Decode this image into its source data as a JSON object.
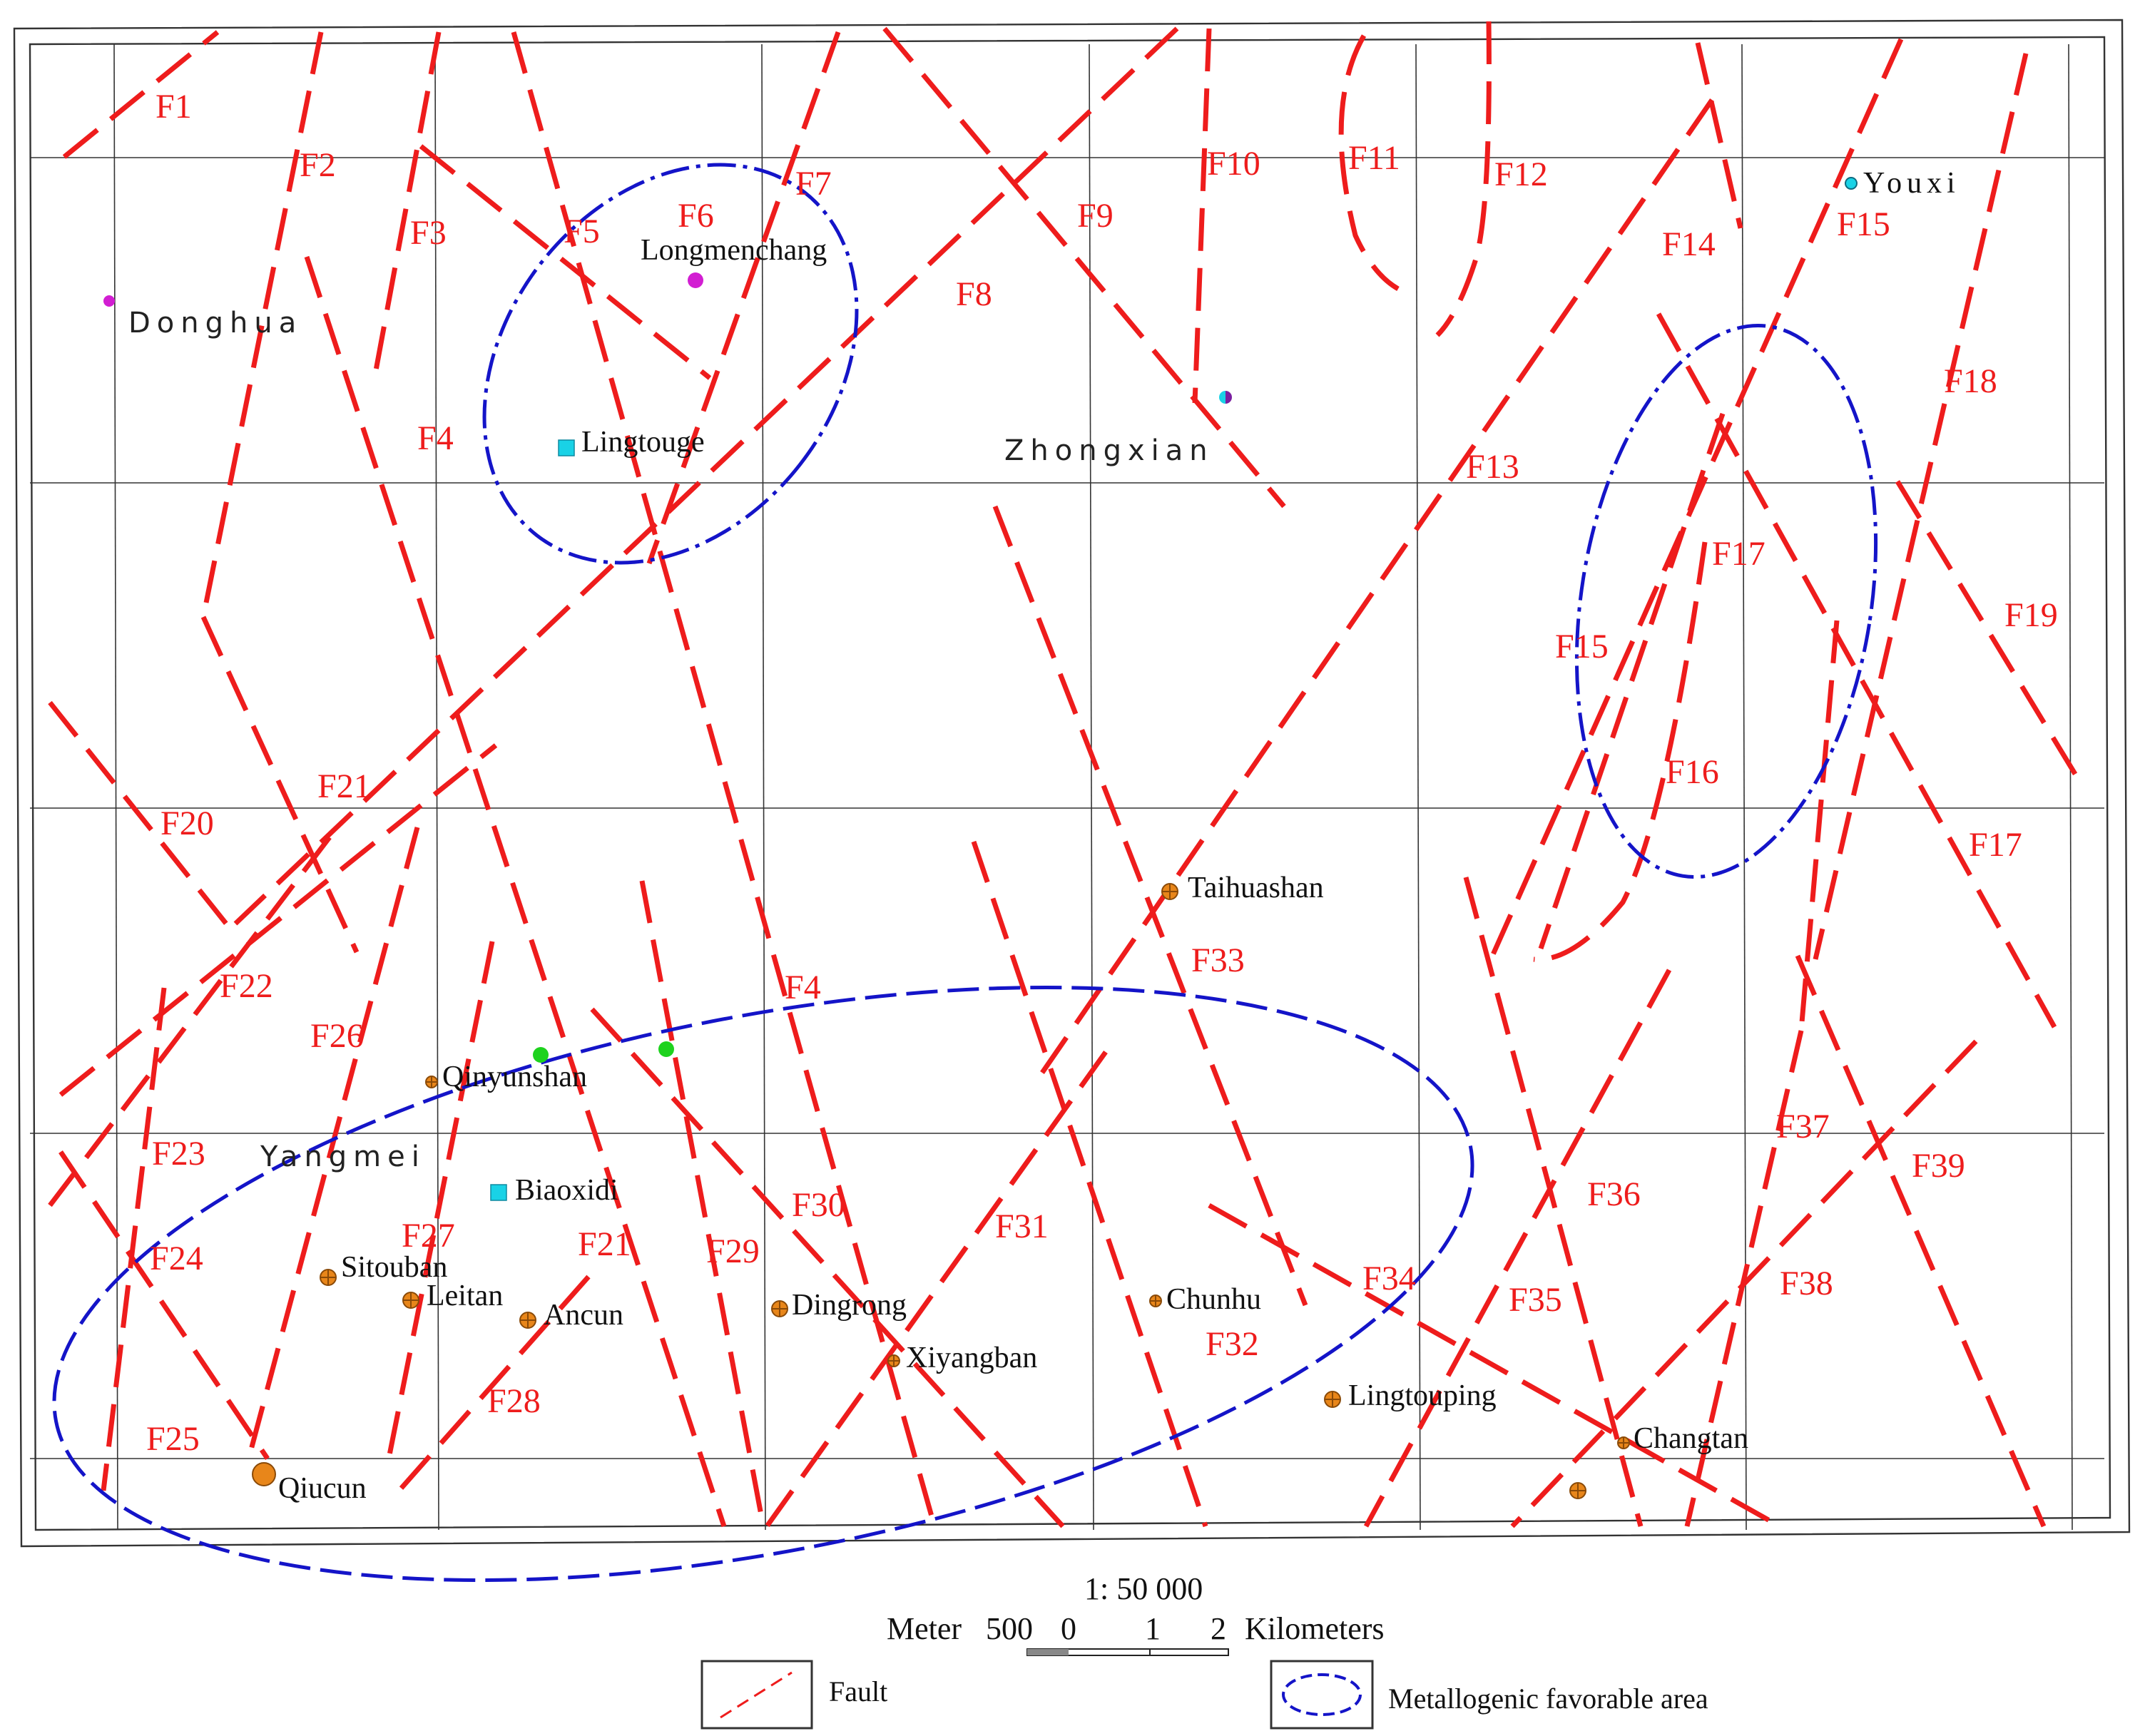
{
  "map": {
    "colors": {
      "fault": "#ee1c1c",
      "favorable_area": "#1414c8",
      "grid": "#333333",
      "deposit_orange": "#e8861a",
      "deposit_magenta": "#d21ed2",
      "deposit_cyan": "#19d2e6",
      "deposit_green": "#1ed21e"
    },
    "fault_labels": {
      "F1": "F1",
      "F2": "F2",
      "F3": "F3",
      "F4a": "F4",
      "F4b": "F4",
      "F5": "F5",
      "F6": "F6",
      "F7": "F7",
      "F8": "F8",
      "F9": "F9",
      "F10": "F10",
      "F11": "F11",
      "F12": "F12",
      "F13": "F13",
      "F14": "F14",
      "F15a": "F15",
      "F15b": "F15",
      "F16": "F16",
      "F17a": "F17",
      "F17b": "F17",
      "F18": "F18",
      "F19": "F19",
      "F20": "F20",
      "F21a": "F21",
      "F21b": "F21",
      "F22": "F22",
      "F23": "F23",
      "F24": "F24",
      "F25": "F25",
      "F26": "F26",
      "F27": "F27",
      "F28": "F28",
      "F29": "F29",
      "F30": "F30",
      "F31": "F31",
      "F32": "F32",
      "F33": "F33",
      "F34": "F34",
      "F35": "F35",
      "F36": "F36",
      "F37": "F37",
      "F38": "F38",
      "F39": "F39"
    },
    "places": {
      "donghua": "Donghua",
      "zhongxian": "Zhongxian",
      "yangmei": "Yangmei",
      "longmenchang": "Longmenchang",
      "lingtouge": "Lingtouge",
      "youxi": "Youxi",
      "taihuashan": "Taihuashan",
      "qinyunshan": "Qinyunshan",
      "biaoxidi": "Biaoxidi",
      "sitouban": "Sitouban",
      "leitan": "Leitan",
      "ancun": "Ancun",
      "dingrong": "Dingrong",
      "xiyangban": "Xiyangban",
      "chunhu": "Chunhu",
      "lingtouping": "Lingtouping",
      "changtan": "Changtan",
      "qiucun": "Qiucun"
    },
    "scale": {
      "ratio": "1: 50 000",
      "unit_left": "Meter",
      "ticks": [
        "500",
        "0",
        "1",
        "2"
      ],
      "unit_right": "Kilometers"
    },
    "legend": {
      "fault": "Fault",
      "favorable_area": "Metallogenic favorable area"
    }
  }
}
